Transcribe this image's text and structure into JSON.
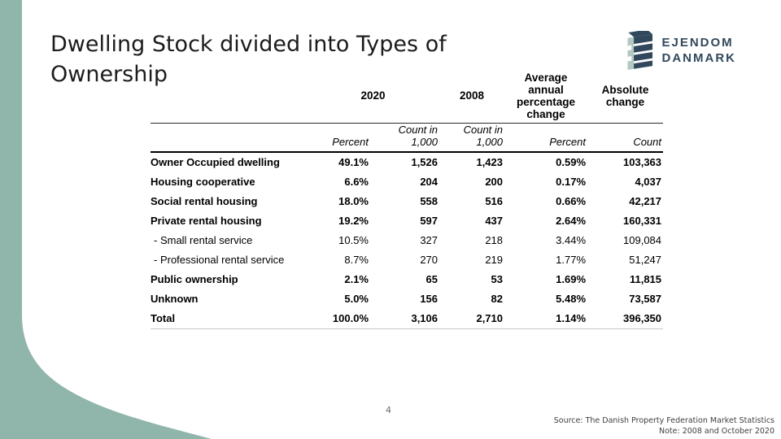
{
  "slide": {
    "title": "Dwelling Stock divided into Types of Ownership",
    "page_number": "4",
    "source_line1": "Source: The Danish Property Federation Market Statistics",
    "source_line2": "Note: 2008 and October 2020"
  },
  "logo": {
    "line1": "EJENDOM",
    "line2": "DANMARK"
  },
  "colors": {
    "accent_teal": "#90B5AB",
    "logo_navy": "#31485C",
    "logo_light": "#B2C8C3"
  },
  "chart_data": {
    "type": "table",
    "title": "Dwelling Stock divided into Types of Ownership",
    "col_groups": [
      {
        "label": "2020",
        "span": 2
      },
      {
        "label": "2008",
        "span": 1
      },
      {
        "label": "Average annual percentage change",
        "span": 1
      },
      {
        "label": "Absolute change",
        "span": 1
      }
    ],
    "sub_headers": [
      "Percent",
      "Count in 1,000",
      "Count in 1,000",
      "Percent",
      "Count"
    ],
    "rows": [
      {
        "label": "Owner Occupied dwelling",
        "bold": true,
        "values": [
          "49.1%",
          "1,526",
          "1,423",
          "0.59%",
          "103,363"
        ]
      },
      {
        "label": "Housing cooperative",
        "bold": true,
        "values": [
          "6.6%",
          "204",
          "200",
          "0.17%",
          "4,037"
        ]
      },
      {
        "label": "Social rental housing",
        "bold": true,
        "values": [
          "18.0%",
          "558",
          "516",
          "0.66%",
          "42,217"
        ]
      },
      {
        "label": "Private rental housing",
        "bold": true,
        "values": [
          "19.2%",
          "597",
          "437",
          "2.64%",
          "160,331"
        ]
      },
      {
        "label": "- Small rental service",
        "bold": false,
        "values": [
          "10.5%",
          "327",
          "218",
          "3.44%",
          "109,084"
        ]
      },
      {
        "label": "- Professional rental service",
        "bold": false,
        "values": [
          "8.7%",
          "270",
          "219",
          "1.77%",
          "51,247"
        ]
      },
      {
        "label": "Public ownership",
        "bold": true,
        "values": [
          "2.1%",
          "65",
          "53",
          "1.69%",
          "11,815"
        ]
      },
      {
        "label": "Unknown",
        "bold": true,
        "values": [
          "5.0%",
          "156",
          "82",
          "5.48%",
          "73,587"
        ]
      },
      {
        "label": "Total",
        "bold": true,
        "values": [
          "100.0%",
          "3,106",
          "2,710",
          "1.14%",
          "396,350"
        ]
      }
    ]
  }
}
